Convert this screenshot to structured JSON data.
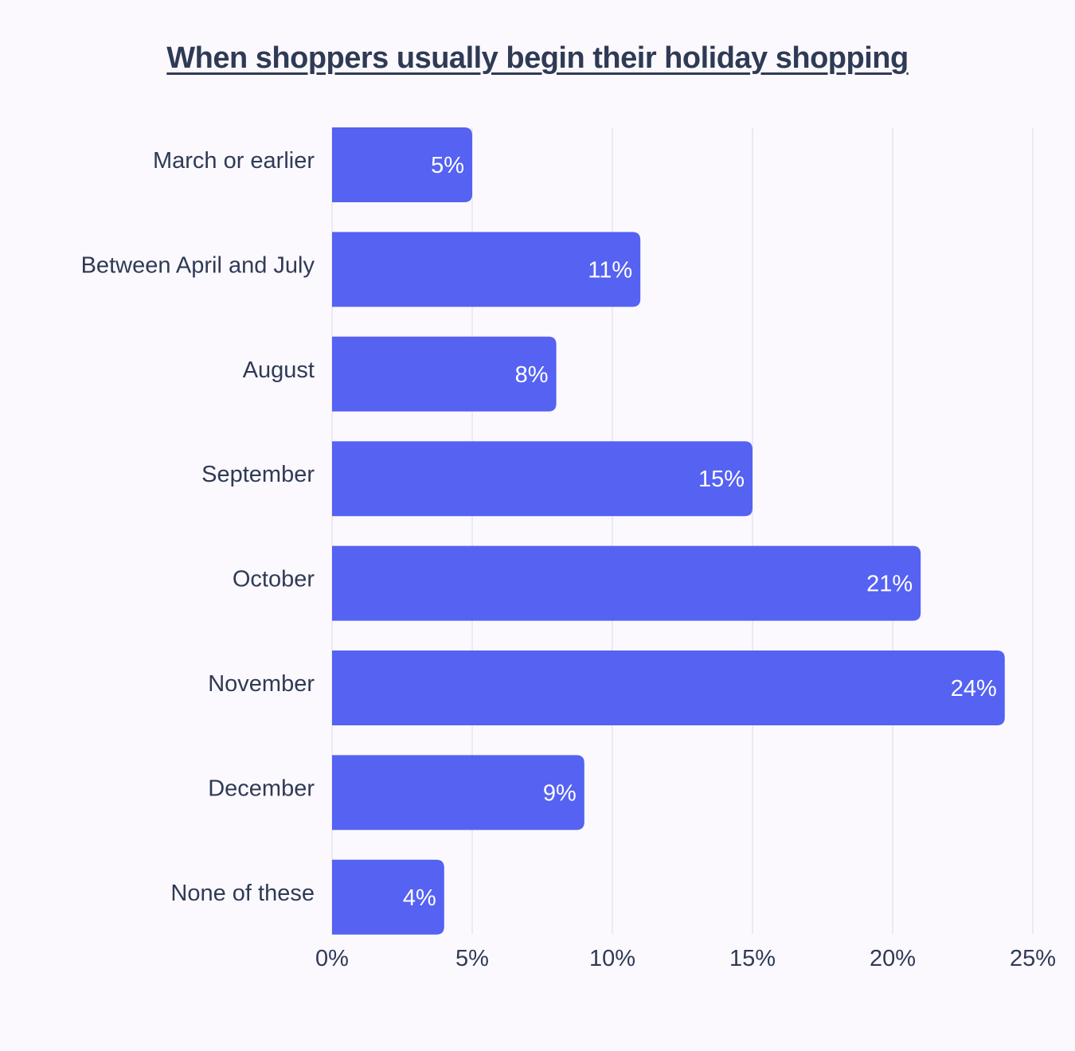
{
  "chart_data": {
    "type": "bar",
    "orientation": "horizontal",
    "title": "When shoppers usually begin their holiday shopping",
    "categories": [
      "March or earlier",
      "Between April and July",
      "August",
      "September",
      "October",
      "November",
      "December",
      "None of these"
    ],
    "values": [
      5,
      11,
      8,
      15,
      21,
      24,
      9,
      4
    ],
    "value_labels": [
      "5%",
      "11%",
      "8%",
      "15%",
      "21%",
      "24%",
      "9%",
      "4%"
    ],
    "x_ticks": [
      0,
      5,
      10,
      15,
      20,
      25
    ],
    "x_tick_labels": [
      "0%",
      "5%",
      "10%",
      "15%",
      "20%",
      "25%"
    ],
    "xlim": [
      0,
      25
    ],
    "xlabel": "",
    "ylabel": "",
    "grid": "vertical",
    "legend": "none",
    "colors": {
      "bar": "#5562f2",
      "text": "#2f3a55",
      "value_text": "#ffffff",
      "grid": "#e6e4ee",
      "background": "#fbf9fe"
    }
  }
}
